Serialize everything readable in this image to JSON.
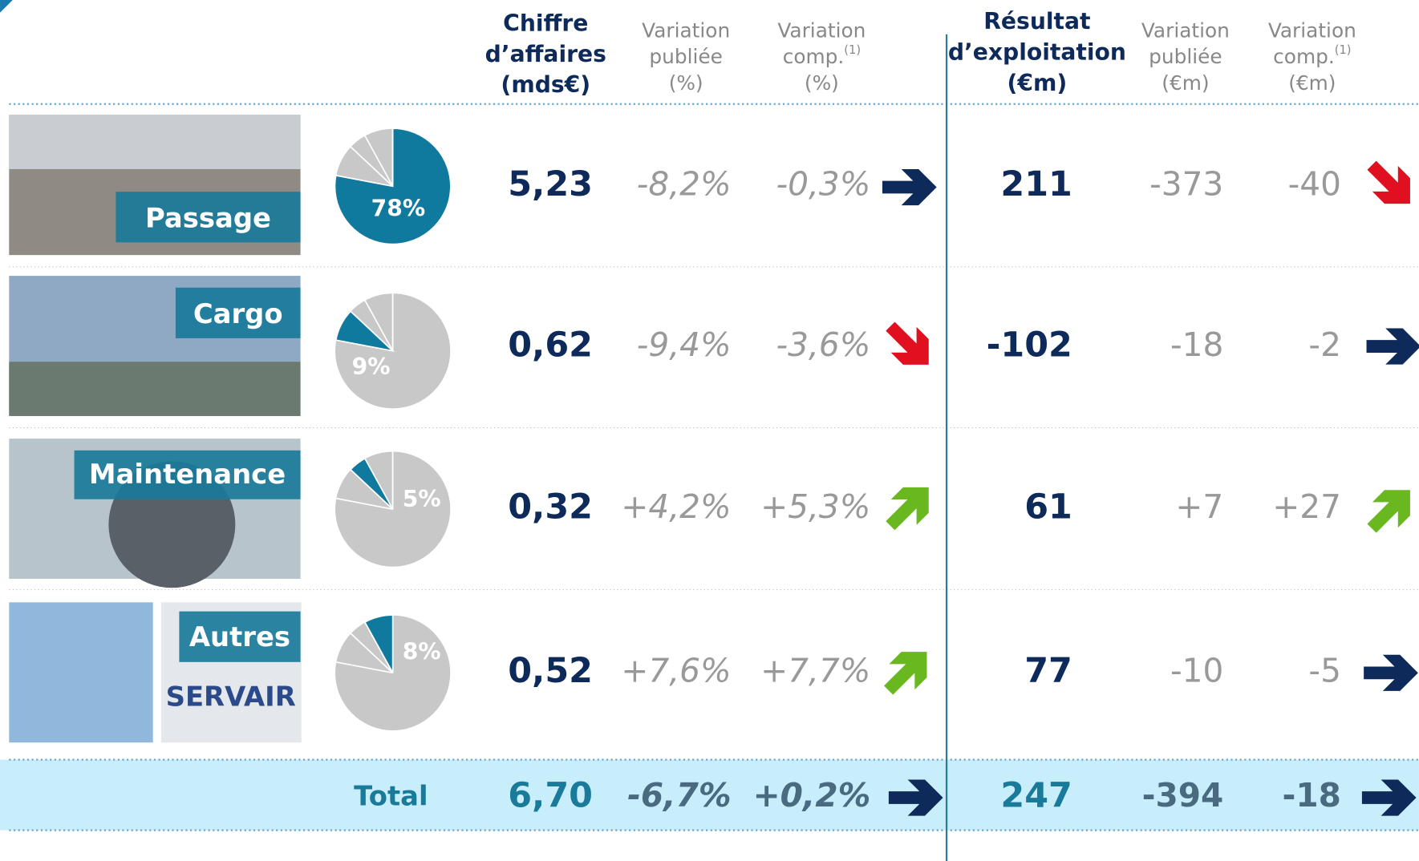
{
  "header": {
    "columns": [
      {
        "lines": [
          "Chiffre",
          "d’affaires",
          "(mds€)"
        ]
      },
      {
        "lines": [
          "Variation",
          "publiée"
        ],
        "unit": "(%)"
      },
      {
        "lines": [
          "Variation",
          "comp."
        ],
        "note": "(1)",
        "unit": "(%)"
      },
      {
        "lines": [
          "Résultat",
          "d’exploitation",
          "(€m)"
        ]
      },
      {
        "lines": [
          "Variation",
          "publiée"
        ],
        "unit": "(€m)"
      },
      {
        "lines": [
          "Variation",
          "comp."
        ],
        "note": "(1)",
        "unit": "(€m)"
      }
    ]
  },
  "rows": [
    {
      "name": "Passage",
      "share": 78,
      "share_label": "78%",
      "cells": [
        "5,23",
        "-8,2%",
        "-0,3%",
        "211",
        "-373",
        "-40"
      ]
    },
    {
      "name": "Cargo",
      "share": 9,
      "share_label": "9%",
      "cells": [
        "0,62",
        "-9,4%",
        "-3,6%",
        "-102",
        "-18",
        "-2"
      ]
    },
    {
      "name": "Maintenance",
      "share": 5,
      "share_label": "5%",
      "cells": [
        "0,32",
        "+4,2%",
        "+5,3%",
        "61",
        "+7",
        "+27"
      ]
    },
    {
      "name": "Autres",
      "photo_text": "SERVAIR",
      "share": 8,
      "share_label": "8%",
      "cells": [
        "0,52",
        "+7,6%",
        "+7,7%",
        "77",
        "-10",
        "-5"
      ]
    }
  ],
  "total": {
    "name": "Total",
    "cells": [
      "6,70",
      "-6,7%",
      "+0,2%",
      "247",
      "-394",
      "-18"
    ]
  }
}
